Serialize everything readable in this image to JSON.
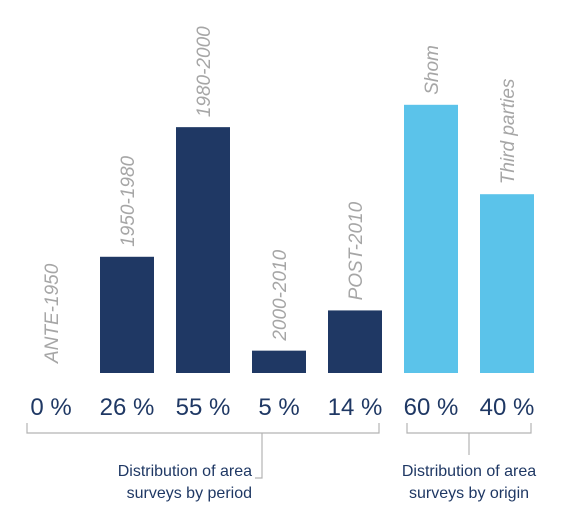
{
  "chart_data": [
    {
      "type": "bar",
      "group_label_lines": [
        "Distribution of area",
        "surveys by period"
      ],
      "color": "#1f3864",
      "categories": [
        "ANTE-1950",
        "1950-1980",
        "1980-2000",
        "2000-2010",
        "POST-2010"
      ],
      "values": [
        0,
        26,
        55,
        5,
        14
      ],
      "value_labels": [
        "0 %",
        "26 %",
        "55 %",
        "5 %",
        "14 %"
      ],
      "unit": "%"
    },
    {
      "type": "bar",
      "group_label_lines": [
        "Distribution of area",
        "surveys by origin"
      ],
      "color": "#5bc3ea",
      "categories": [
        "Shom",
        "Third parties"
      ],
      "values": [
        60,
        40
      ],
      "value_labels": [
        "60 %",
        "40 %"
      ],
      "unit": "%"
    }
  ]
}
